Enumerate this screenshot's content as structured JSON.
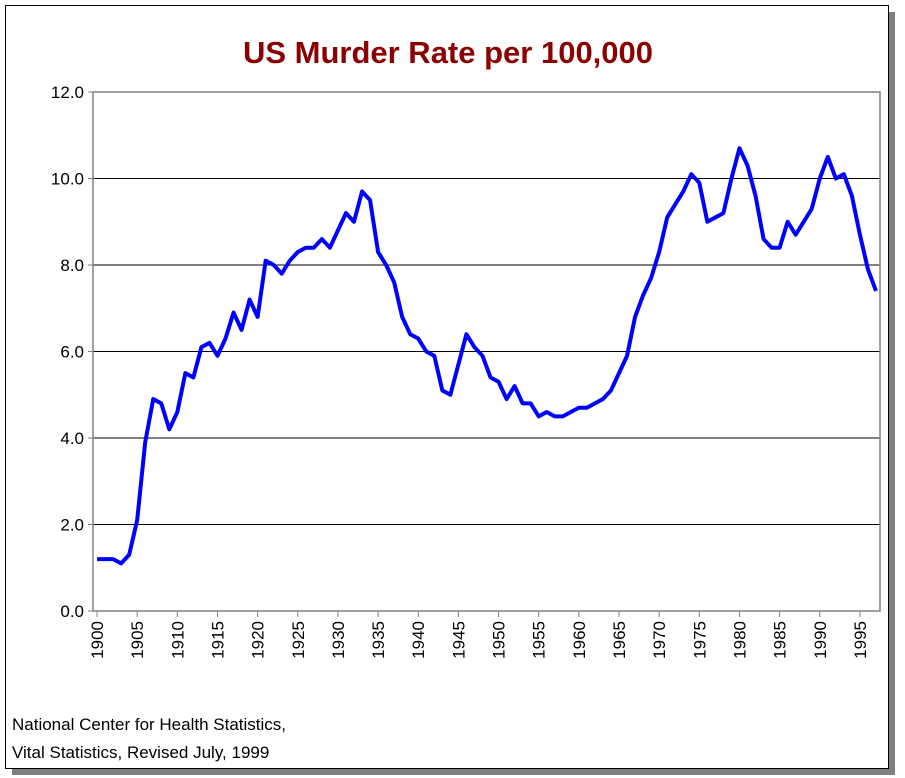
{
  "chart_data": {
    "type": "line",
    "title": "US Murder Rate per 100,000",
    "x": [
      1900,
      1901,
      1902,
      1903,
      1904,
      1905,
      1906,
      1907,
      1908,
      1909,
      1910,
      1911,
      1912,
      1913,
      1914,
      1915,
      1916,
      1917,
      1918,
      1919,
      1920,
      1921,
      1922,
      1923,
      1924,
      1925,
      1926,
      1927,
      1928,
      1929,
      1930,
      1931,
      1932,
      1933,
      1934,
      1935,
      1936,
      1937,
      1938,
      1939,
      1940,
      1941,
      1942,
      1943,
      1944,
      1945,
      1946,
      1947,
      1948,
      1949,
      1950,
      1951,
      1952,
      1953,
      1954,
      1955,
      1956,
      1957,
      1958,
      1959,
      1960,
      1961,
      1962,
      1963,
      1964,
      1965,
      1966,
      1967,
      1968,
      1969,
      1970,
      1971,
      1972,
      1973,
      1974,
      1975,
      1976,
      1977,
      1978,
      1979,
      1980,
      1981,
      1982,
      1983,
      1984,
      1985,
      1986,
      1987,
      1988,
      1989,
      1990,
      1991,
      1992,
      1993,
      1994,
      1995,
      1996,
      1997
    ],
    "series": [
      {
        "color": "#0000ff",
        "values": [
          1.2,
          1.2,
          1.2,
          1.1,
          1.3,
          2.1,
          3.9,
          4.9,
          4.8,
          4.2,
          4.6,
          5.5,
          5.4,
          6.1,
          6.2,
          5.9,
          6.3,
          6.9,
          6.5,
          7.2,
          6.8,
          8.1,
          8.0,
          7.8,
          8.1,
          8.3,
          8.4,
          8.4,
          8.6,
          8.4,
          8.8,
          9.2,
          9.0,
          9.7,
          9.5,
          8.3,
          8.0,
          7.6,
          6.8,
          6.4,
          6.3,
          6.0,
          5.9,
          5.1,
          5.0,
          5.7,
          6.4,
          6.1,
          5.9,
          5.4,
          5.3,
          4.9,
          5.2,
          4.8,
          4.8,
          4.5,
          4.6,
          4.5,
          4.5,
          4.6,
          4.7,
          4.7,
          4.8,
          4.9,
          5.1,
          5.5,
          5.9,
          6.8,
          7.3,
          7.7,
          8.3,
          9.1,
          9.4,
          9.7,
          10.1,
          9.9,
          9.0,
          9.1,
          9.2,
          10.0,
          10.7,
          10.3,
          9.6,
          8.6,
          8.4,
          8.4,
          9.0,
          8.7,
          9.0,
          9.3,
          10.0,
          10.5,
          10.0,
          10.1,
          9.6,
          8.7,
          7.9,
          7.4
        ]
      }
    ],
    "xlim": [
      1899.5,
      1997.5
    ],
    "xticks": [
      1900,
      1905,
      1910,
      1915,
      1920,
      1925,
      1930,
      1935,
      1940,
      1945,
      1950,
      1955,
      1960,
      1965,
      1970,
      1975,
      1980,
      1985,
      1990,
      1995
    ],
    "ylim": [
      0,
      12
    ],
    "yticks": [
      {
        "value": 0,
        "label": "0.0"
      },
      {
        "value": 2,
        "label": "2.0"
      },
      {
        "value": 4,
        "label": "4.0"
      },
      {
        "value": 6,
        "label": "6.0"
      },
      {
        "value": 8,
        "label": "8.0"
      },
      {
        "value": 10,
        "label": "10.0"
      },
      {
        "value": 12,
        "label": "12.0"
      }
    ],
    "grid": true,
    "source": [
      "National Center for Health Statistics,",
      "Vital Statistics, Revised July, 1999"
    ]
  }
}
